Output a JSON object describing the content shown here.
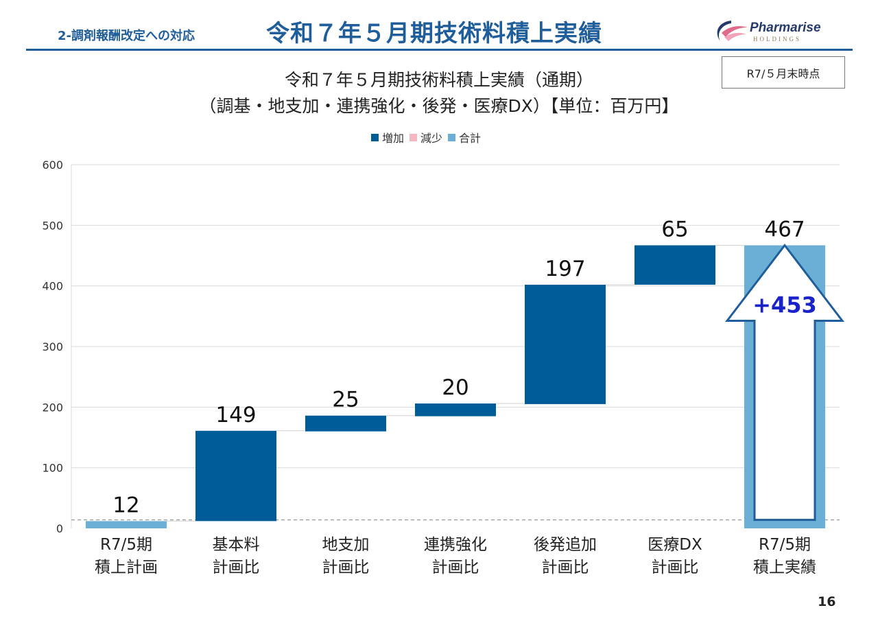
{
  "header": {
    "section": "2-調剤報酬改定への対応",
    "title": "令和７年５月期技術料積上実績"
  },
  "logo": {
    "name": "Pharmarise",
    "sub": "HOLDINGS"
  },
  "badge": "R7/５月末時点",
  "page_number": "16",
  "colors": {
    "accent": "#1f5e9a",
    "increase": "#005c99",
    "decrease": "#f4b9c0",
    "total": "#6baed6",
    "arrow_text": "#1a23c8"
  },
  "chart_data": {
    "type": "waterfall",
    "title_lines": [
      "令和７年５月期技術料積上実績（通期）",
      "（調基・地支加・連携強化・後発・医療DX）【単位：百万円】"
    ],
    "legend": [
      {
        "label": "増加",
        "role": "increase"
      },
      {
        "label": "減少",
        "role": "decrease"
      },
      {
        "label": "合計",
        "role": "total"
      }
    ],
    "legend_position": "top",
    "ylim": [
      0,
      600
    ],
    "yticks": [
      "0",
      "100",
      "200",
      "300",
      "400",
      "500",
      "600"
    ],
    "grid": true,
    "categories": [
      [
        "R7/5期",
        "積上計画"
      ],
      [
        "基本料",
        "計画比"
      ],
      [
        "地支加",
        "計画比"
      ],
      [
        "連携強化",
        "計画比"
      ],
      [
        "後発追加",
        "計画比"
      ],
      [
        "医療DX",
        "計画比"
      ],
      [
        "R7/5期",
        "積上実績"
      ]
    ],
    "bars": [
      {
        "kind": "total",
        "start": 0,
        "end": 12,
        "label": "12"
      },
      {
        "kind": "increase",
        "start": 12,
        "end": 161,
        "label": "149"
      },
      {
        "kind": "increase",
        "start": 160,
        "end": 186,
        "label": "25"
      },
      {
        "kind": "increase",
        "start": 185,
        "end": 206,
        "label": "20"
      },
      {
        "kind": "increase",
        "start": 205,
        "end": 402,
        "label": "197"
      },
      {
        "kind": "increase",
        "start": 402,
        "end": 467,
        "label": "65"
      },
      {
        "kind": "total",
        "start": 0,
        "end": 467,
        "label": "467"
      }
    ],
    "reference_line": 14,
    "annotation": {
      "text": "+453",
      "from": 14,
      "to": 467
    }
  }
}
